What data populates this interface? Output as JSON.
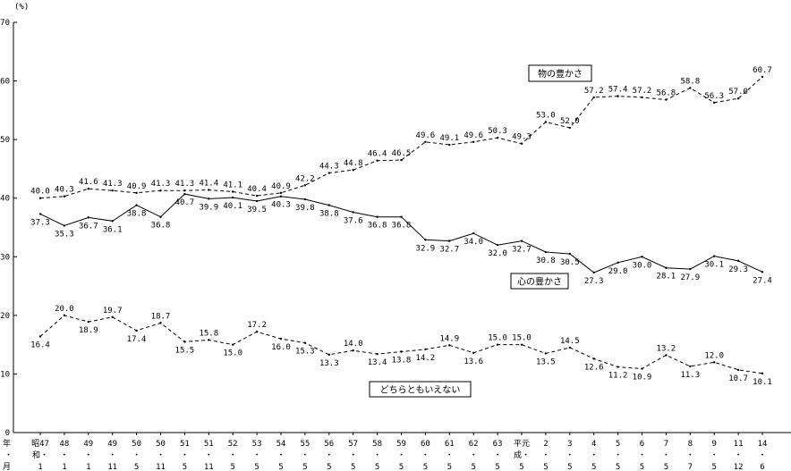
{
  "chart_data": {
    "type": "line",
    "ylabel": "(%)",
    "ylim": [
      0,
      70
    ],
    "yticks": [
      0,
      10,
      20,
      30,
      40,
      50,
      60,
      70
    ],
    "grid": false,
    "x_rows": {
      "row1_prefix": "年",
      "row2_prefix": "・",
      "row3_prefix": "月",
      "era_showa": "昭",
      "era_showa_2": "和",
      "era_heisei": "平",
      "era_heisei_2": "成"
    },
    "categories": [
      {
        "year": "47",
        "month": "1"
      },
      {
        "year": "48",
        "month": "1"
      },
      {
        "year": "49",
        "month": "1"
      },
      {
        "year": "49",
        "month": "11"
      },
      {
        "year": "50",
        "month": "5"
      },
      {
        "year": "50",
        "month": "11"
      },
      {
        "year": "51",
        "month": "5"
      },
      {
        "year": "51",
        "month": "11"
      },
      {
        "year": "52",
        "month": "5"
      },
      {
        "year": "53",
        "month": "5"
      },
      {
        "year": "54",
        "month": "5"
      },
      {
        "year": "55",
        "month": "5"
      },
      {
        "year": "56",
        "month": "5"
      },
      {
        "year": "57",
        "month": "5"
      },
      {
        "year": "58",
        "month": "5"
      },
      {
        "year": "59",
        "month": "5"
      },
      {
        "year": "60",
        "month": "5"
      },
      {
        "year": "61",
        "month": "5"
      },
      {
        "year": "62",
        "month": "5"
      },
      {
        "year": "63",
        "month": "5"
      },
      {
        "year": "元",
        "month": "5"
      },
      {
        "year": "2",
        "month": "5"
      },
      {
        "year": "3",
        "month": "5"
      },
      {
        "year": "4",
        "month": "5"
      },
      {
        "year": "5",
        "month": "5"
      },
      {
        "year": "6",
        "month": "5"
      },
      {
        "year": "7",
        "month": "5"
      },
      {
        "year": "8",
        "month": "7"
      },
      {
        "year": "9",
        "month": "5"
      },
      {
        "year": "11",
        "month": "12"
      },
      {
        "year": "14",
        "month": "6"
      }
    ],
    "series": [
      {
        "name": "心の豊かさ",
        "style": "solid",
        "values": [
          37.3,
          35.3,
          36.7,
          36.1,
          38.8,
          36.8,
          40.7,
          39.9,
          40.1,
          39.5,
          40.3,
          39.8,
          38.8,
          37.6,
          36.8,
          36.8,
          32.9,
          32.7,
          34.0,
          32.0,
          32.7,
          30.8,
          30.5,
          27.3,
          29.0,
          30.0,
          28.1,
          27.9,
          30.1,
          29.3,
          27.4
        ]
      },
      {
        "name": "物の豊かさ",
        "style": "dashed",
        "values": [
          40.0,
          40.3,
          41.6,
          41.3,
          40.9,
          41.3,
          41.3,
          41.4,
          41.1,
          40.4,
          40.9,
          42.2,
          44.3,
          44.8,
          46.4,
          46.5,
          49.6,
          49.1,
          49.6,
          50.3,
          49.3,
          53.0,
          52.0,
          57.2,
          57.4,
          57.2,
          56.8,
          58.8,
          56.3,
          57.0,
          60.7
        ]
      },
      {
        "name": "どちらともいえない",
        "style": "dashed",
        "values": [
          16.4,
          20.0,
          18.9,
          19.7,
          17.4,
          18.7,
          15.5,
          15.8,
          15.0,
          17.2,
          16.0,
          15.3,
          13.3,
          14.0,
          13.4,
          13.8,
          14.2,
          14.9,
          13.6,
          15.0,
          15.0,
          13.5,
          14.5,
          12.6,
          11.2,
          10.9,
          13.2,
          11.3,
          12.0,
          10.7,
          10.1
        ]
      }
    ]
  }
}
